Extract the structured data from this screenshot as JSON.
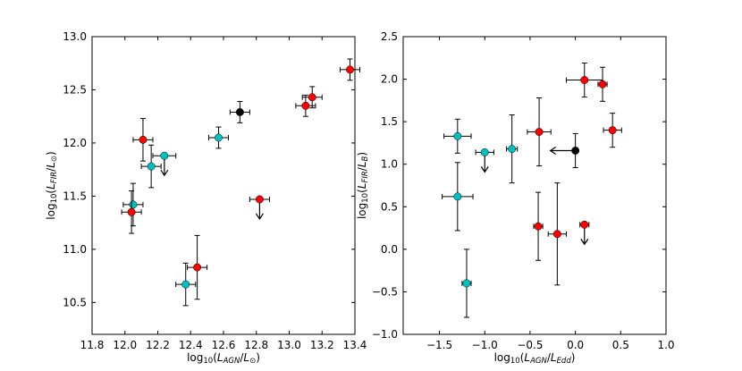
{
  "chart_data": [
    {
      "type": "scatter",
      "id": "left",
      "xlabel_parts": [
        "log",
        "10",
        "(",
        "L",
        "AGN",
        "/",
        "L",
        "⊙",
        ")"
      ],
      "ylabel_parts": [
        "log",
        "10",
        "(",
        "L",
        "FIR",
        "/",
        "L",
        "⊙",
        ")"
      ],
      "xlim": [
        11.8,
        13.4
      ],
      "ylim": [
        10.2,
        13.0
      ],
      "xticks": [
        11.8,
        12.0,
        12.2,
        12.4,
        12.6,
        12.8,
        13.0,
        13.2,
        13.4
      ],
      "xtick_labels": [
        "11.8",
        "12.0",
        "12.2",
        "12.4",
        "12.6",
        "12.8",
        "13.0",
        "13.2",
        "13.4"
      ],
      "yticks": [
        10.5,
        11.0,
        11.5,
        12.0,
        12.5,
        13.0
      ],
      "ytick_labels": [
        "10.5",
        "11.0",
        "11.5",
        "12.0",
        "12.5",
        "13.0"
      ],
      "colors": {
        "red": "#ff0000",
        "cyan": "#00bfbf",
        "black": "#000000"
      },
      "points": [
        {
          "x": 12.11,
          "y": 12.03,
          "xerr": 0.06,
          "yerr": 0.2,
          "color": "red",
          "upper_limit": false
        },
        {
          "x": 12.16,
          "y": 11.78,
          "xerr": 0.06,
          "yerr": 0.2,
          "color": "cyan",
          "upper_limit": false
        },
        {
          "x": 12.24,
          "y": 11.88,
          "xerr": 0.07,
          "yerr": 0,
          "color": "cyan",
          "upper_limit": true
        },
        {
          "x": 12.05,
          "y": 11.42,
          "xerr": 0.06,
          "yerr": 0.2,
          "color": "cyan",
          "upper_limit": false
        },
        {
          "x": 12.04,
          "y": 11.35,
          "xerr": 0.06,
          "yerr": 0.2,
          "color": "red",
          "upper_limit": false
        },
        {
          "x": 12.57,
          "y": 12.05,
          "xerr": 0.06,
          "yerr": 0.1,
          "color": "cyan",
          "upper_limit": false
        },
        {
          "x": 12.7,
          "y": 12.29,
          "xerr": 0.06,
          "yerr": 0.1,
          "color": "black",
          "upper_limit": false
        },
        {
          "x": 13.14,
          "y": 12.43,
          "xerr": 0.06,
          "yerr": 0.1,
          "color": "red",
          "upper_limit": false
        },
        {
          "x": 13.1,
          "y": 12.35,
          "xerr": 0.06,
          "yerr": 0.1,
          "color": "red",
          "upper_limit": false
        },
        {
          "x": 13.37,
          "y": 12.69,
          "xerr": 0.06,
          "yerr": 0.1,
          "color": "red",
          "upper_limit": false
        },
        {
          "x": 12.82,
          "y": 11.47,
          "xerr": 0.06,
          "yerr": 0,
          "color": "red",
          "upper_limit": true
        },
        {
          "x": 12.44,
          "y": 10.83,
          "xerr": 0.06,
          "yerr": 0.3,
          "color": "red",
          "upper_limit": false
        },
        {
          "x": 12.37,
          "y": 10.67,
          "xerr": 0.06,
          "yerr": 0.2,
          "color": "cyan",
          "upper_limit": false
        }
      ]
    },
    {
      "type": "scatter",
      "id": "right",
      "xlabel_parts": [
        "log",
        "10",
        "(",
        "L",
        "AGN",
        "/",
        "L",
        "Edd",
        ")"
      ],
      "ylabel_parts": [
        "log",
        "10",
        "(",
        "L",
        "FIR",
        "/",
        "L",
        "B",
        ")"
      ],
      "xlim": [
        -1.9,
        1.0
      ],
      "ylim": [
        -1.0,
        2.5
      ],
      "xticks": [
        -1.5,
        -1.0,
        -0.5,
        0.0,
        0.5,
        1.0
      ],
      "xtick_labels": [
        "−1.5",
        "−1.0",
        "−0.5",
        "0.0",
        "0.5",
        "1.0"
      ],
      "yticks": [
        -1.0,
        -0.5,
        0.0,
        0.5,
        1.0,
        1.5,
        2.0,
        2.5
      ],
      "ytick_labels": [
        "−1.0",
        "−0.5",
        "0.0",
        "0.5",
        "1.0",
        "1.5",
        "2.0",
        "2.5"
      ],
      "colors": {
        "red": "#ff0000",
        "cyan": "#00bfbf",
        "black": "#000000"
      },
      "points": [
        {
          "x": -1.3,
          "y": 1.33,
          "xerr": 0.15,
          "yerr": 0.2,
          "color": "cyan",
          "upper_limit": false
        },
        {
          "x": -1.3,
          "y": 0.62,
          "xerr": 0.17,
          "yerr": 0.4,
          "color": "cyan",
          "upper_limit": false
        },
        {
          "x": -1.2,
          "y": -0.4,
          "xerr": 0.05,
          "yerr": 0.4,
          "color": "cyan",
          "upper_limit": false
        },
        {
          "x": -1.0,
          "y": 1.14,
          "xerr": 0.1,
          "yerr": 0,
          "color": "cyan",
          "upper_limit": true
        },
        {
          "x": -0.7,
          "y": 1.18,
          "xerr": 0.06,
          "yerr": 0.4,
          "color": "cyan",
          "upper_limit": false
        },
        {
          "x": -0.4,
          "y": 1.38,
          "xerr": 0.13,
          "yerr": 0.4,
          "color": "red",
          "upper_limit": false
        },
        {
          "x": -0.41,
          "y": 0.27,
          "xerr": 0.05,
          "yerr": 0.4,
          "color": "red",
          "upper_limit": false
        },
        {
          "x": -0.2,
          "y": 0.18,
          "xerr": 0.1,
          "yerr": 0.6,
          "color": "red",
          "upper_limit": false
        },
        {
          "x": 0.1,
          "y": 1.99,
          "xerr": 0.2,
          "yerr": 0.2,
          "color": "red",
          "upper_limit": false
        },
        {
          "x": 0.3,
          "y": 1.94,
          "xerr": 0.05,
          "yerr": 0.2,
          "color": "red",
          "upper_limit": false
        },
        {
          "x": 0.41,
          "y": 1.4,
          "xerr": 0.1,
          "yerr": 0.2,
          "color": "red",
          "upper_limit": false
        },
        {
          "x": 0.1,
          "y": 0.29,
          "xerr": 0.05,
          "yerr": 0,
          "color": "red",
          "upper_limit": true
        },
        {
          "x": 0.0,
          "y": 1.16,
          "xerr": 0,
          "yerr": 0.2,
          "color": "black",
          "upper_limit": false,
          "lower_limit_x": true
        }
      ]
    }
  ]
}
